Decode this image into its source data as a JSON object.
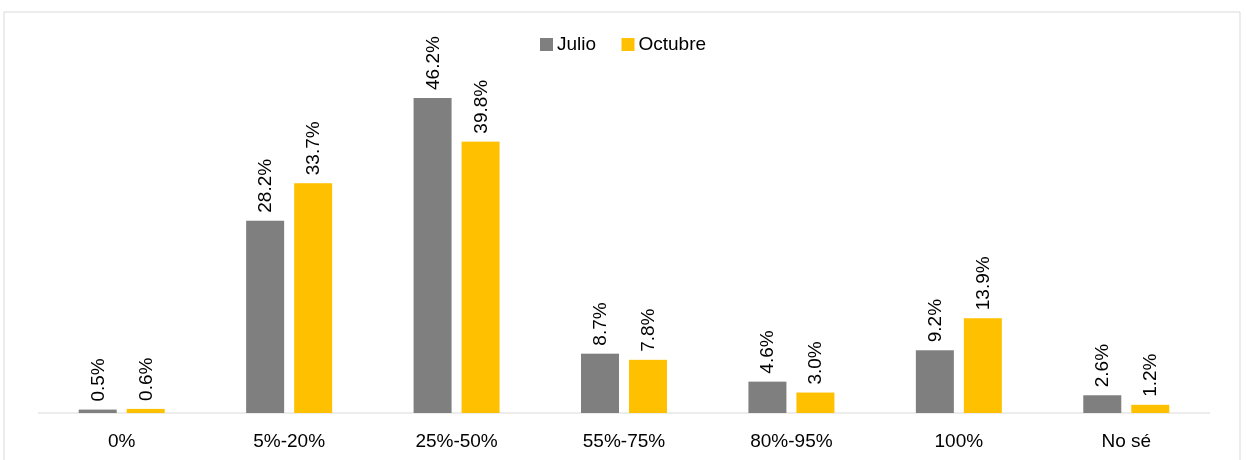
{
  "chart_data": {
    "type": "bar",
    "categories": [
      "0%",
      "5%-20%",
      "25%-50%",
      "55%-75%",
      "80%-95%",
      "100%",
      "No sé"
    ],
    "series": [
      {
        "name": "Julio",
        "color": "#7f7f7f",
        "values": [
          0.5,
          28.2,
          46.2,
          8.7,
          4.6,
          9.2,
          2.6
        ],
        "value_labels": [
          "0.5%",
          "28.2%",
          "46.2%",
          "8.7%",
          "4.6%",
          "9.2%",
          "2.6%"
        ]
      },
      {
        "name": "Octubre",
        "color": "#ffc000",
        "values": [
          0.6,
          33.7,
          39.8,
          7.8,
          3.0,
          13.9,
          1.2
        ],
        "value_labels": [
          "0.6%",
          "33.7%",
          "39.8%",
          "7.8%",
          "3.0%",
          "13.9%",
          "1.2%"
        ]
      }
    ],
    "legend": "top"
  }
}
